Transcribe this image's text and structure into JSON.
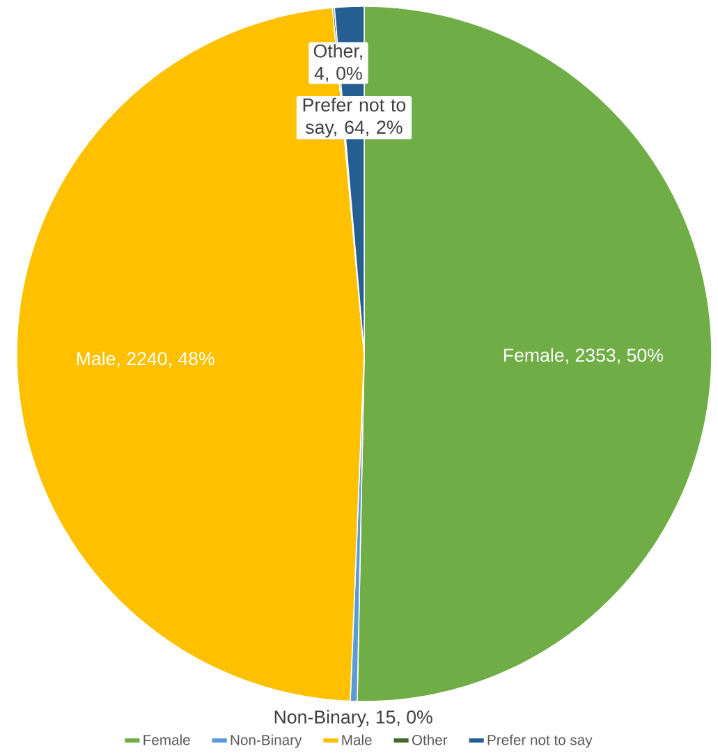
{
  "chart_data": {
    "type": "pie",
    "categories": [
      "Female",
      "Non-Binary",
      "Male",
      "Other",
      "Prefer not to say"
    ],
    "values": [
      2353,
      15,
      2240,
      4,
      64
    ],
    "colors": [
      "#70ad47",
      "#5b9bd5",
      "#ffc000",
      "#43682b",
      "#255e91"
    ],
    "value_labels": [
      "Female, 2353, 50%",
      "Non-Binary, 15, 0%",
      "Male, 2240, 48%",
      "Other, 4, 0%",
      "Prefer not to say, 64, 2%"
    ],
    "legend": "bottom"
  }
}
